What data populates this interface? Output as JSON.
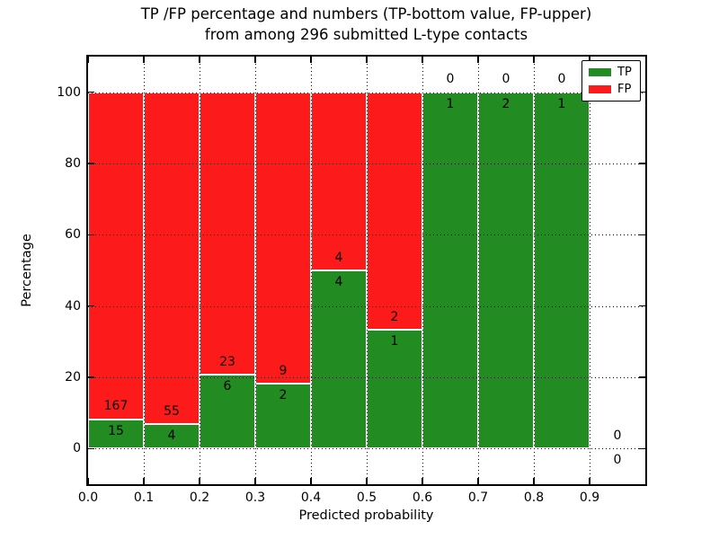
{
  "page": {
    "background": "#ffffff"
  },
  "chart_data": {
    "type": "bar",
    "stacked": true,
    "title_line1": "TP /FP percentage and numbers (TP-bottom value, FP-upper)",
    "title_line2": "from among 296 submitted L-type contacts",
    "xlabel": "Predicted probability",
    "ylabel": "Percentage",
    "xlim": [
      0.0,
      1.0
    ],
    "ylim": [
      -10,
      110
    ],
    "grid": "dotted, drawn over bars",
    "xticks": [
      {
        "value": 0.0,
        "label": "0.0"
      },
      {
        "value": 0.1,
        "label": "0.1"
      },
      {
        "value": 0.2,
        "label": "0.2"
      },
      {
        "value": 0.3,
        "label": "0.3"
      },
      {
        "value": 0.4,
        "label": "0.4"
      },
      {
        "value": 0.5,
        "label": "0.5"
      },
      {
        "value": 0.6,
        "label": "0.6"
      },
      {
        "value": 0.7,
        "label": "0.7"
      },
      {
        "value": 0.8,
        "label": "0.8"
      },
      {
        "value": 0.9,
        "label": "0.9"
      }
    ],
    "yticks": [
      {
        "value": 0,
        "label": "0"
      },
      {
        "value": 20,
        "label": "20"
      },
      {
        "value": 40,
        "label": "40"
      },
      {
        "value": 60,
        "label": "60"
      },
      {
        "value": 80,
        "label": "80"
      },
      {
        "value": 100,
        "label": "100"
      }
    ],
    "colors": {
      "tp": "#228b22",
      "fp": "#fd1a1a",
      "bar_edge": "#ffffff",
      "axis": "#000000",
      "text": "#000000"
    },
    "legend": {
      "position": "upper right",
      "entries": [
        {
          "label": "TP",
          "color": "#228b22"
        },
        {
          "label": "FP",
          "color": "#fd1a1a"
        }
      ]
    },
    "bins": [
      {
        "range": [
          0.0,
          0.1
        ],
        "tp": 15,
        "fp": 167
      },
      {
        "range": [
          0.1,
          0.2
        ],
        "tp": 4,
        "fp": 55
      },
      {
        "range": [
          0.2,
          0.3
        ],
        "tp": 6,
        "fp": 23
      },
      {
        "range": [
          0.3,
          0.4
        ],
        "tp": 2,
        "fp": 9
      },
      {
        "range": [
          0.4,
          0.5
        ],
        "tp": 4,
        "fp": 4
      },
      {
        "range": [
          0.5,
          0.6
        ],
        "tp": 1,
        "fp": 2
      },
      {
        "range": [
          0.6,
          0.7
        ],
        "tp": 1,
        "fp": 0
      },
      {
        "range": [
          0.7,
          0.8
        ],
        "tp": 2,
        "fp": 0
      },
      {
        "range": [
          0.8,
          0.9
        ],
        "tp": 1,
        "fp": 0
      },
      {
        "range": [
          0.9,
          1.0
        ],
        "tp": 0,
        "fp": 0
      }
    ]
  }
}
